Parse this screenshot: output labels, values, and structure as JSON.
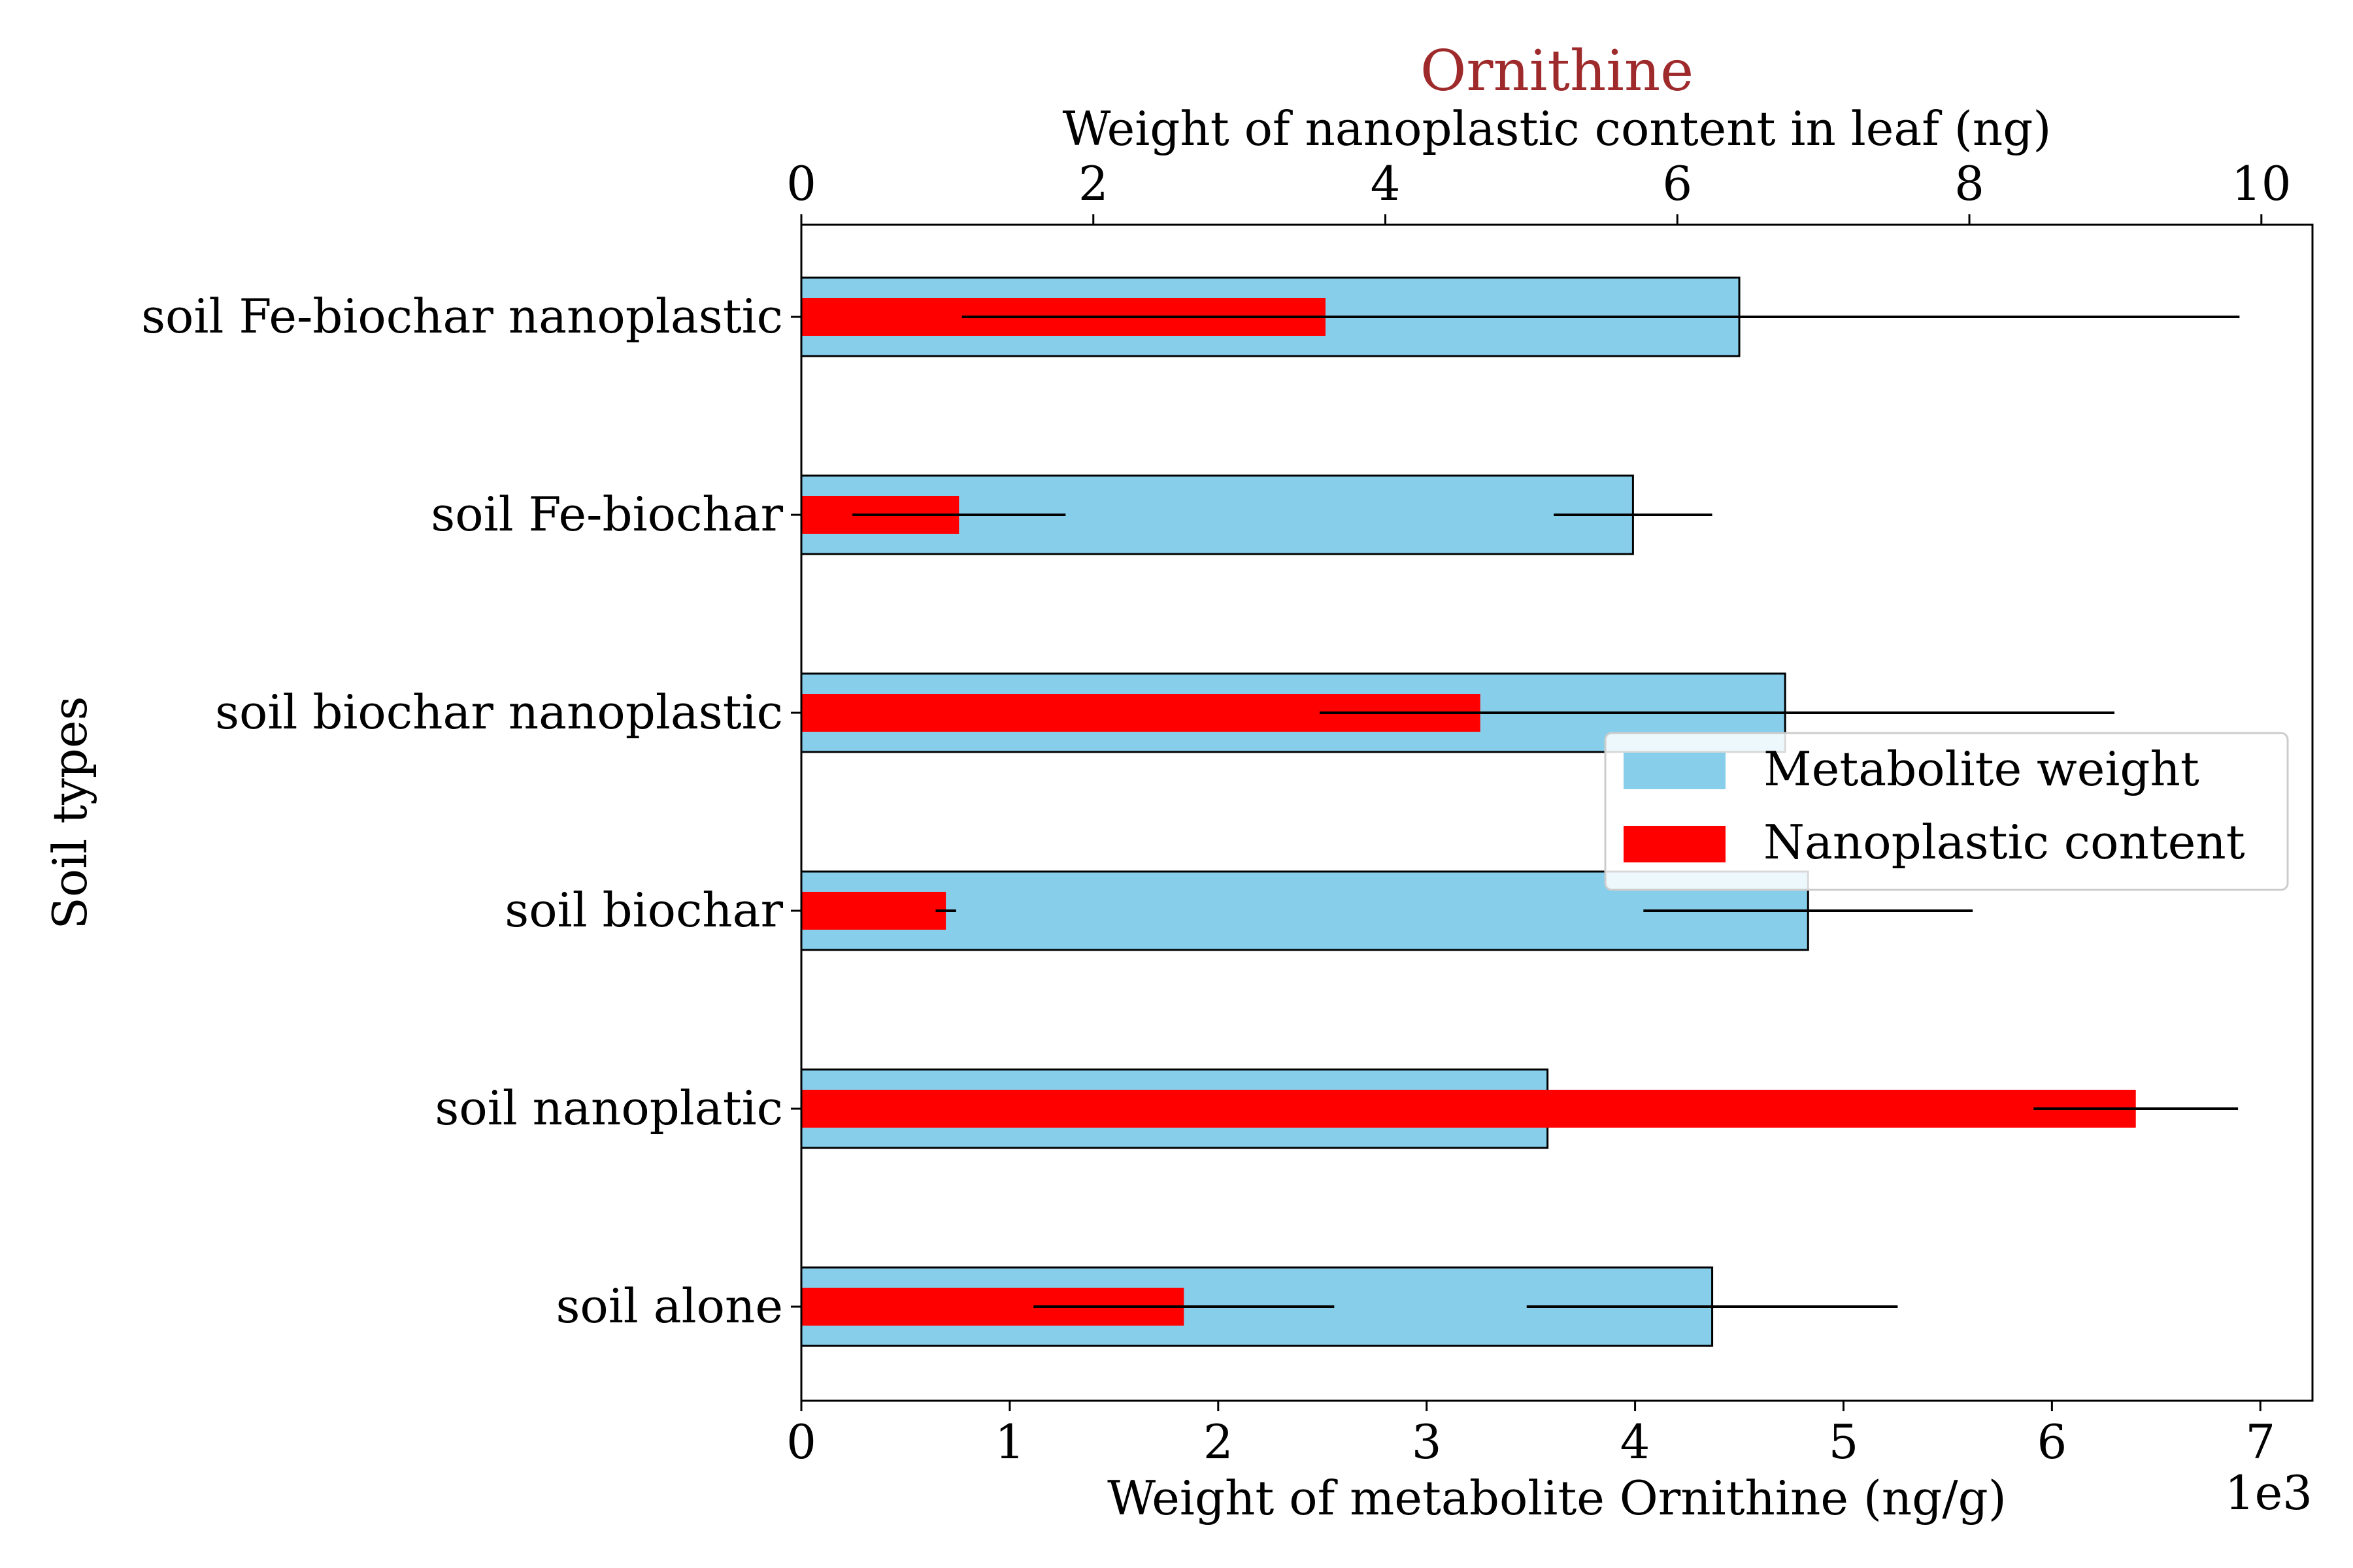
{
  "chart_data": {
    "type": "bar",
    "orientation": "horizontal",
    "title": "Ornithine",
    "ylabel": "Soil types",
    "xlabel_bottom": "Weight of metabolite Ornithine (ng/g)",
    "xlabel_top": "Weight of nanoplastic content in leaf (ng)",
    "bottom_axis": {
      "range": [
        0,
        7.25
      ],
      "ticks": [
        0,
        1,
        2,
        3,
        4,
        5,
        6,
        7
      ],
      "multiplier": "1e3"
    },
    "top_axis": {
      "range": [
        0,
        10.35
      ],
      "ticks": [
        0,
        2,
        4,
        6,
        8,
        10
      ]
    },
    "categories": [
      "soil Fe-biochar nanoplastic",
      "soil Fe-biochar",
      "soil biochar nanoplastic",
      "soil biochar",
      "soil nanoplatic",
      "soil alone"
    ],
    "series": [
      {
        "name": "Metabolite weight",
        "axis": "bottom",
        "color": "#87ceeb",
        "values": [
          4.5,
          3.99,
          4.72,
          4.83,
          3.58,
          4.37
        ],
        "errors": [
          2.4,
          0.38,
          1.58,
          0.79,
          0.0,
          0.89
        ]
      },
      {
        "name": "Nanoplastic content",
        "axis": "top",
        "color": "#ff0000",
        "values": [
          3.59,
          1.08,
          4.65,
          0.99,
          9.14,
          2.62
        ],
        "errors": [
          2.49,
          0.73,
          1.1,
          0.07,
          0.7,
          1.03
        ]
      }
    ],
    "legend": {
      "position": "right"
    },
    "grid": false
  }
}
